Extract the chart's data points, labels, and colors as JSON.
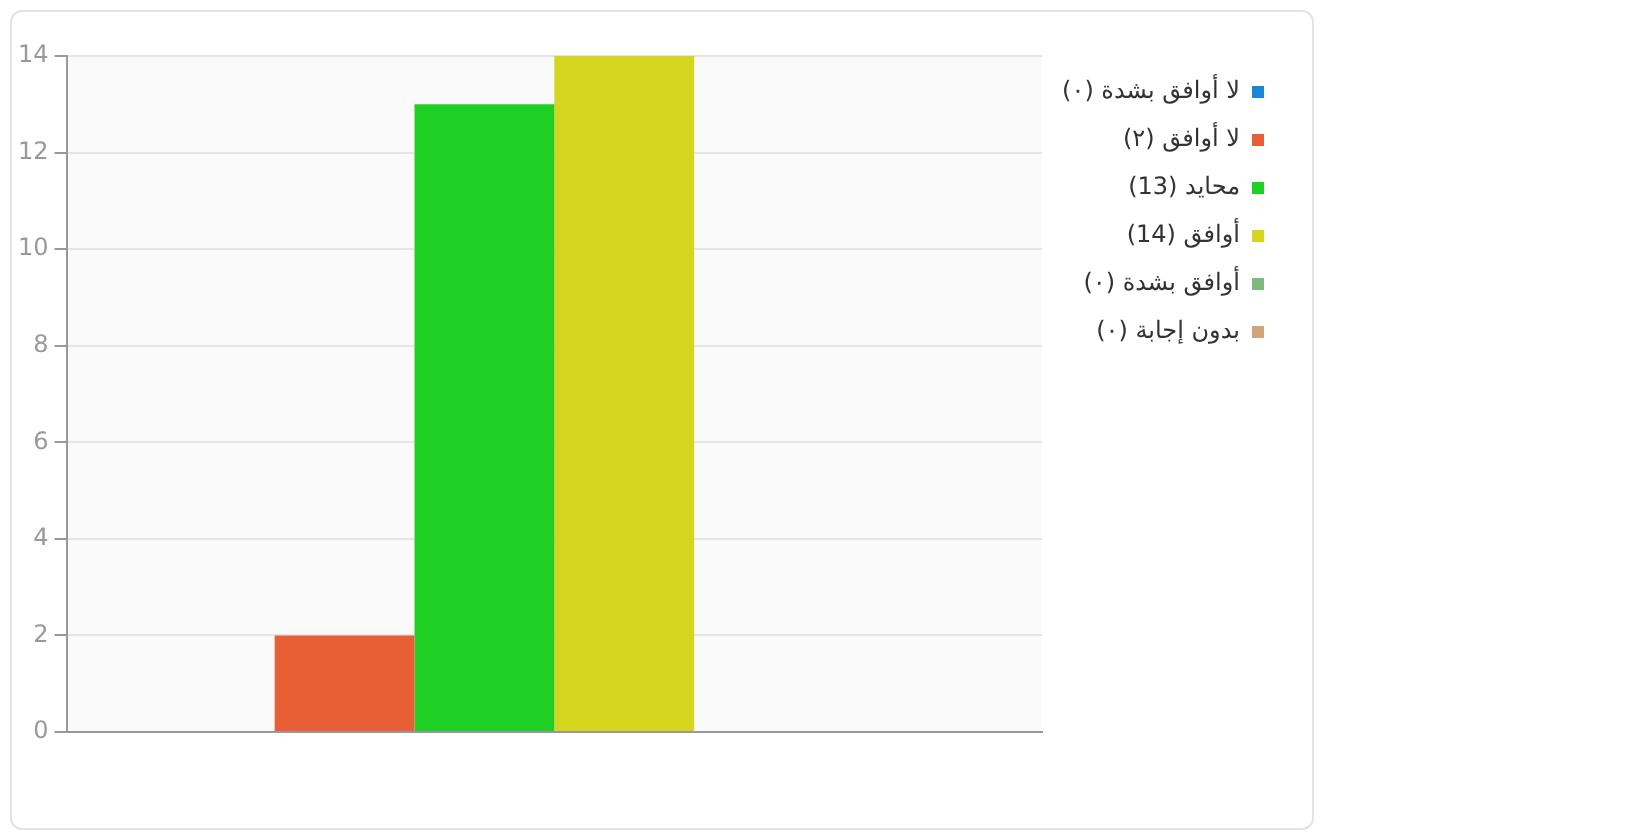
{
  "chart_data": {
    "type": "bar",
    "categories": [
      null
    ],
    "series": [
      {
        "name": "لا أوافق بشدة (٠)",
        "color": "#1a86d6",
        "values": [
          0
        ]
      },
      {
        "name": "لا أوافق (٢)",
        "color": "#e85f35",
        "values": [
          2
        ]
      },
      {
        "name": "محايد (13)",
        "color": "#20cf24",
        "values": [
          13
        ]
      },
      {
        "name": "أوافق (14)",
        "color": "#d3d51f",
        "values": [
          14
        ]
      },
      {
        "name": "أوافق بشدة (٠)",
        "color": "#80b980",
        "values": [
          0
        ]
      },
      {
        "name": "بدون إجابة (٠)",
        "color": "#d2a47a",
        "values": [
          0
        ]
      }
    ],
    "ylim": [
      0,
      14
    ],
    "yticks": [
      0,
      2,
      4,
      6,
      8,
      10,
      12,
      14
    ],
    "grid": "y",
    "legend": "top right"
  }
}
